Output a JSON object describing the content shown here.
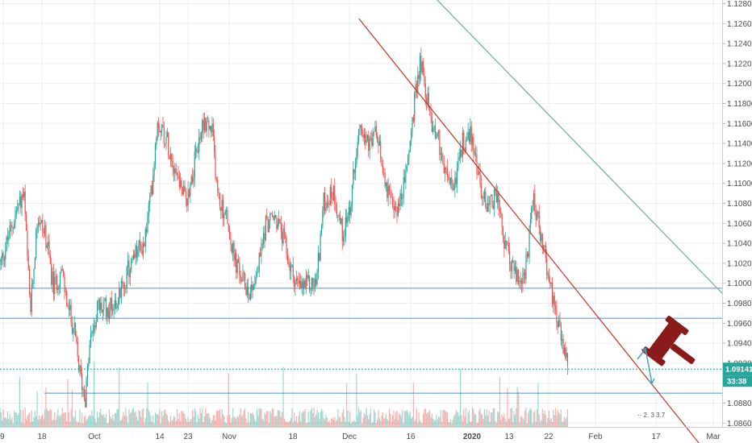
{
  "chart_data": {
    "type": "candlestick",
    "instrument_hint": "EURUSD",
    "y_axis": {
      "ticks": [
        "1.12800",
        "1.12600",
        "1.12400",
        "1.12200",
        "1.12000",
        "1.11800",
        "1.11600",
        "1.11400",
        "1.11200",
        "1.11000",
        "1.10800",
        "1.10600",
        "1.10400",
        "1.10200",
        "1.10000",
        "1.09800",
        "1.09600",
        "1.09400",
        "1.09200",
        "1.09000",
        "1.08800",
        "1.08600"
      ],
      "ylim": [
        1.0843,
        1.129
      ],
      "position": "right"
    },
    "x_axis": {
      "ticks": [
        {
          "label": "9",
          "bold": false
        },
        {
          "label": "18",
          "bold": false
        },
        {
          "label": "Oct",
          "bold": false
        },
        {
          "label": "14",
          "bold": false
        },
        {
          "label": "23",
          "bold": false
        },
        {
          "label": "Nov",
          "bold": false
        },
        {
          "label": "18",
          "bold": false
        },
        {
          "label": "Dec",
          "bold": false
        },
        {
          "label": "16",
          "bold": false
        },
        {
          "label": "2020",
          "bold": true
        },
        {
          "label": "13",
          "bold": false
        },
        {
          "label": "22",
          "bold": false
        },
        {
          "label": "Feb",
          "bold": false
        },
        {
          "label": "17",
          "bold": false
        },
        {
          "label": "Mar",
          "bold": false
        }
      ]
    },
    "price_path": [
      [
        0.0,
        1.1018
      ],
      [
        0.024,
        1.1075
      ],
      [
        0.033,
        1.1089
      ],
      [
        0.042,
        1.097
      ],
      [
        0.052,
        1.1068
      ],
      [
        0.064,
        1.1045
      ],
      [
        0.074,
        1.0995
      ],
      [
        0.085,
        1.1012
      ],
      [
        0.094,
        1.0975
      ],
      [
        0.102,
        1.0955
      ],
      [
        0.11,
        1.0912
      ],
      [
        0.118,
        1.0885
      ],
      [
        0.125,
        1.0942
      ],
      [
        0.135,
        1.0975
      ],
      [
        0.15,
        1.0975
      ],
      [
        0.164,
        1.0985
      ],
      [
        0.176,
        1.101
      ],
      [
        0.19,
        1.1032
      ],
      [
        0.2,
        1.104
      ],
      [
        0.21,
        1.1095
      ],
      [
        0.218,
        1.1165
      ],
      [
        0.232,
        1.1142
      ],
      [
        0.245,
        1.111
      ],
      [
        0.258,
        1.1082
      ],
      [
        0.27,
        1.1122
      ],
      [
        0.282,
        1.1164
      ],
      [
        0.294,
        1.115
      ],
      [
        0.302,
        1.1085
      ],
      [
        0.314,
        1.1065
      ],
      [
        0.324,
        1.1025
      ],
      [
        0.334,
        1.1005
      ],
      [
        0.346,
        1.0992
      ],
      [
        0.356,
        1.101
      ],
      [
        0.368,
        1.106
      ],
      [
        0.382,
        1.1065
      ],
      [
        0.392,
        1.1045
      ],
      [
        0.402,
        1.1015
      ],
      [
        0.414,
        1.0995
      ],
      [
        0.426,
        1.0998
      ],
      [
        0.438,
        1.1
      ],
      [
        0.448,
        1.108
      ],
      [
        0.462,
        1.1092
      ],
      [
        0.474,
        1.105
      ],
      [
        0.486,
        1.108
      ],
      [
        0.498,
        1.117
      ],
      [
        0.51,
        1.1135
      ],
      [
        0.52,
        1.115
      ],
      [
        0.532,
        1.111
      ],
      [
        0.544,
        1.107
      ],
      [
        0.556,
        1.1085
      ],
      [
        0.566,
        1.113
      ],
      [
        0.574,
        1.118
      ],
      [
        0.582,
        1.1225
      ],
      [
        0.59,
        1.119
      ],
      [
        0.598,
        1.116
      ],
      [
        0.606,
        1.115
      ],
      [
        0.616,
        1.111
      ],
      [
        0.628,
        1.1095
      ],
      [
        0.64,
        1.114
      ],
      [
        0.652,
        1.115
      ],
      [
        0.66,
        1.112
      ],
      [
        0.668,
        1.1085
      ],
      [
        0.678,
        1.108
      ],
      [
        0.688,
        1.109
      ],
      [
        0.698,
        1.104
      ],
      [
        0.71,
        1.1015
      ],
      [
        0.72,
        1.1
      ],
      [
        0.73,
        1.102
      ],
      [
        0.738,
        1.1085
      ],
      [
        0.746,
        1.106
      ],
      [
        0.754,
        1.103
      ],
      [
        0.762,
        1.0995
      ],
      [
        0.77,
        1.0975
      ],
      [
        0.776,
        1.0945
      ],
      [
        0.782,
        1.093
      ],
      [
        0.786,
        1.09141
      ]
    ],
    "horizontal_levels": [
      {
        "price": 1.0995,
        "style": "solid",
        "color": "#4a90d9",
        "full_width": true
      },
      {
        "price": 1.0965,
        "style": "solid",
        "color": "#4a90d9",
        "full_width": true
      },
      {
        "price": 1.09141,
        "style": "dotted",
        "color": "#26a69a",
        "full_width": true
      },
      {
        "price": 1.089,
        "style": "solid",
        "color": "#4a90d9",
        "full_width": false
      }
    ],
    "trendlines": [
      {
        "color": "#c0392b",
        "from": [
          0.497,
          1.1265
        ],
        "to": [
          0.99,
          1.082
        ]
      },
      {
        "color": "#6fae8f",
        "from": [
          0.57,
          1.131
        ],
        "to": [
          1.0,
          1.099
        ]
      }
    ],
    "last_price": {
      "value": "1.09141",
      "countdown": "33:38",
      "color": "#26a69a"
    },
    "hidden_hud_label": "·· 2.  3 3.7",
    "colors": {
      "up": "#26a69a",
      "down": "#ef5350",
      "grid": "#eeeeee",
      "axis_text": "#4a4a4a",
      "support": "#4a90d9",
      "down_trend": "#c0392b",
      "upper_channel": "#6fae8f",
      "gavel": "#8b1a1a",
      "arrow": "#4aa3c8"
    },
    "annotations": [
      {
        "type": "gavel-icon",
        "meaning": "bearish / judgment marker"
      },
      {
        "type": "arrow",
        "direction": "up-then-down"
      }
    ],
    "grid": true
  }
}
